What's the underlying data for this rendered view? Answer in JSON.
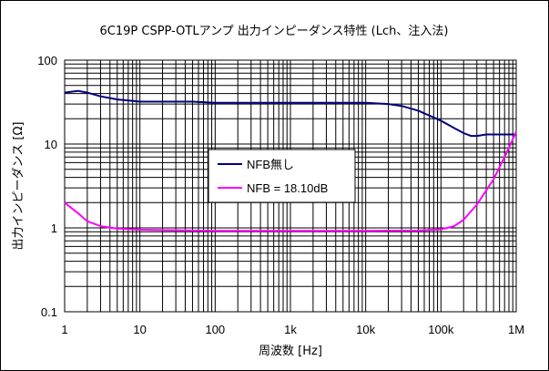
{
  "chart_data": {
    "type": "line",
    "title": "6C19P CSPP-OTLアンプ 出力インピーダンス特性 (Lch、注入法)",
    "xlabel": "周波数 [Hz]",
    "ylabel": "出力インピーダンス [Ω]",
    "x_scale": "log",
    "y_scale": "log",
    "xlim": [
      1,
      1000000
    ],
    "ylim": [
      0.1,
      100
    ],
    "grid": true,
    "legend_position": "center-left",
    "x_tick_labels": [
      "1",
      "10",
      "100",
      "1k",
      "10k",
      "100k",
      "1M"
    ],
    "x_tick_values": [
      1,
      10,
      100,
      1000,
      10000,
      100000,
      1000000
    ],
    "y_tick_labels": [
      "0.1",
      "1",
      "10",
      "100"
    ],
    "y_tick_values": [
      0.1,
      1,
      10,
      100
    ],
    "series": [
      {
        "name": "NFB無し",
        "color": "#000080",
        "x": [
          1,
          1.2,
          1.5,
          2,
          3,
          5,
          7,
          10,
          20,
          50,
          100,
          1000,
          5000,
          10000,
          20000,
          30000,
          50000,
          100000,
          150000,
          200000,
          250000,
          300000,
          400000,
          1000000
        ],
        "y": [
          41,
          42,
          43,
          41,
          37,
          34,
          33,
          32,
          32,
          32,
          31,
          31,
          31,
          31,
          30,
          28.5,
          25,
          19,
          15.5,
          13.5,
          12.5,
          12.5,
          13,
          13
        ]
      },
      {
        "name": "NFB = 18.10dB",
        "color": "#FF00FF",
        "x": [
          1,
          1.5,
          2,
          3,
          5,
          10,
          100,
          1000,
          10000,
          50000,
          100000,
          150000,
          200000,
          300000,
          500000,
          700000,
          1000000
        ],
        "y": [
          2.0,
          1.5,
          1.2,
          1.05,
          0.98,
          0.95,
          0.92,
          0.92,
          0.92,
          0.93,
          0.96,
          1.05,
          1.25,
          1.9,
          3.8,
          7,
          14
        ]
      }
    ]
  }
}
